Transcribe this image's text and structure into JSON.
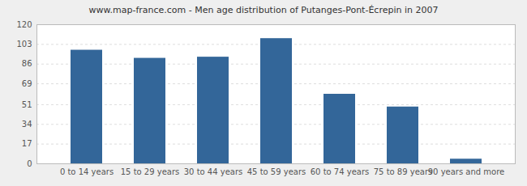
{
  "chart_data": {
    "type": "bar",
    "title": "www.map-france.com - Men age distribution of Putanges-Pont-Écrepin in 2007",
    "categories": [
      "0 to 14 years",
      "15 to 29 years",
      "30 to 44 years",
      "45 to 59 years",
      "60 to 74 years",
      "75 to 89 years",
      "90 years and more"
    ],
    "values": [
      98,
      91,
      92,
      108,
      60,
      49,
      4
    ],
    "color": "#336699",
    "ylim": [
      0,
      120
    ],
    "yticks": [
      0,
      17,
      34,
      51,
      69,
      86,
      103,
      120
    ],
    "grid": true
  }
}
